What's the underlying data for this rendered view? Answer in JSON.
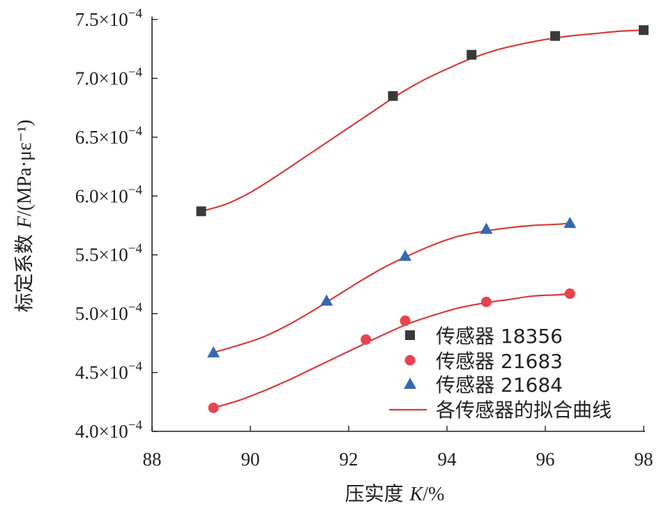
{
  "chart_data": {
    "type": "scatter",
    "title": "",
    "xlabel": {
      "prefix": "压实度 ",
      "var": "K",
      "suffix": "/%"
    },
    "ylabel": {
      "prefix": "标定系数 ",
      "var": "F",
      "suffix": "/(MPa·με⁻¹)"
    },
    "xlim": [
      88,
      98
    ],
    "ylim": [
      4.0,
      7.5
    ],
    "y_unit_multiplier_label": "×10",
    "y_exponent": "−4",
    "x_ticks": [
      {
        "value": 88,
        "label": "88"
      },
      {
        "value": 90,
        "label": "90"
      },
      {
        "value": 92,
        "label": "92"
      },
      {
        "value": 94,
        "label": "94"
      },
      {
        "value": 96,
        "label": "96"
      },
      {
        "value": 98,
        "label": "98"
      }
    ],
    "y_ticks": [
      {
        "value": 4.0,
        "label": "4.0"
      },
      {
        "value": 4.5,
        "label": "4.5"
      },
      {
        "value": 5.0,
        "label": "5.0"
      },
      {
        "value": 5.5,
        "label": "5.5"
      },
      {
        "value": 6.0,
        "label": "6.0"
      },
      {
        "value": 6.5,
        "label": "6.5"
      },
      {
        "value": 7.0,
        "label": "7.0"
      },
      {
        "value": 7.5,
        "label": "7.5"
      }
    ],
    "grid": false,
    "legend_position": "bottom-right",
    "series": [
      {
        "name": "传感器 18356",
        "marker": "square",
        "color": "#3a3a3a",
        "points": [
          {
            "x": 89.0,
            "y": 5.87
          },
          {
            "x": 92.9,
            "y": 6.85
          },
          {
            "x": 94.5,
            "y": 7.2
          },
          {
            "x": 96.2,
            "y": 7.36
          },
          {
            "x": 98.0,
            "y": 7.41
          }
        ],
        "fit": [
          [
            89.0,
            5.87
          ],
          [
            89.5,
            5.93
          ],
          [
            90.0,
            6.03
          ],
          [
            90.5,
            6.16
          ],
          [
            91.0,
            6.3
          ],
          [
            91.5,
            6.44
          ],
          [
            92.0,
            6.58
          ],
          [
            92.5,
            6.72
          ],
          [
            93.0,
            6.86
          ],
          [
            93.5,
            6.98
          ],
          [
            94.0,
            7.08
          ],
          [
            94.5,
            7.17
          ],
          [
            95.0,
            7.24
          ],
          [
            95.5,
            7.29
          ],
          [
            96.0,
            7.33
          ],
          [
            96.5,
            7.36
          ],
          [
            97.0,
            7.38
          ],
          [
            97.5,
            7.4
          ],
          [
            98.0,
            7.41
          ]
        ]
      },
      {
        "name": "传感器 21683",
        "marker": "circle",
        "color": "#e8434f",
        "points": [
          {
            "x": 89.25,
            "y": 4.2
          },
          {
            "x": 92.35,
            "y": 4.78
          },
          {
            "x": 93.15,
            "y": 4.94
          },
          {
            "x": 94.8,
            "y": 5.1
          },
          {
            "x": 96.5,
            "y": 5.17
          }
        ],
        "fit": [
          [
            89.25,
            4.2
          ],
          [
            89.75,
            4.26
          ],
          [
            90.25,
            4.34
          ],
          [
            90.75,
            4.43
          ],
          [
            91.25,
            4.53
          ],
          [
            91.75,
            4.63
          ],
          [
            92.25,
            4.73
          ],
          [
            92.75,
            4.83
          ],
          [
            93.25,
            4.92
          ],
          [
            93.75,
            4.99
          ],
          [
            94.25,
            5.05
          ],
          [
            94.75,
            5.09
          ],
          [
            95.25,
            5.12
          ],
          [
            95.75,
            5.15
          ],
          [
            96.25,
            5.16
          ],
          [
            96.5,
            5.17
          ]
        ]
      },
      {
        "name": "传感器 21684",
        "marker": "triangle",
        "color": "#3568b2",
        "points": [
          {
            "x": 89.25,
            "y": 4.67
          },
          {
            "x": 91.55,
            "y": 5.11
          },
          {
            "x": 93.15,
            "y": 5.49
          },
          {
            "x": 94.8,
            "y": 5.72
          },
          {
            "x": 96.5,
            "y": 5.77
          }
        ],
        "fit": [
          [
            89.25,
            4.67
          ],
          [
            89.75,
            4.73
          ],
          [
            90.25,
            4.8
          ],
          [
            90.75,
            4.9
          ],
          [
            91.25,
            5.02
          ],
          [
            91.75,
            5.15
          ],
          [
            92.25,
            5.28
          ],
          [
            92.75,
            5.4
          ],
          [
            93.25,
            5.5
          ],
          [
            93.75,
            5.59
          ],
          [
            94.25,
            5.66
          ],
          [
            94.75,
            5.7
          ],
          [
            95.25,
            5.73
          ],
          [
            95.75,
            5.75
          ],
          [
            96.25,
            5.76
          ],
          [
            96.5,
            5.77
          ]
        ]
      }
    ],
    "fit_line": {
      "label": "各传感器的拟合曲线",
      "color": "#d93a3a"
    }
  }
}
